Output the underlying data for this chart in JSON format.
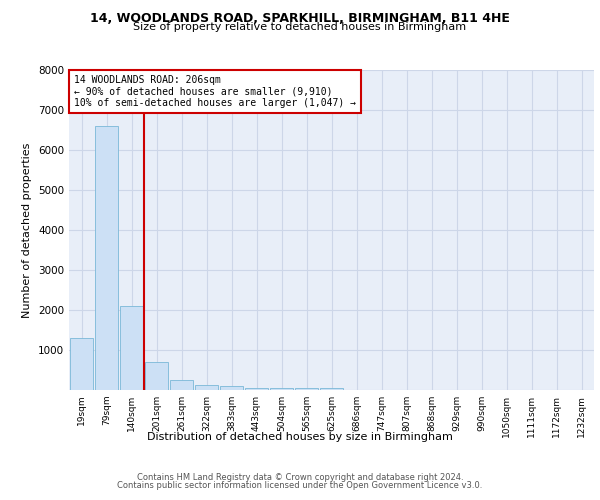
{
  "title1": "14, WOODLANDS ROAD, SPARKHILL, BIRMINGHAM, B11 4HE",
  "title2": "Size of property relative to detached houses in Birmingham",
  "xlabel": "Distribution of detached houses by size in Birmingham",
  "ylabel": "Number of detached properties",
  "bar_color": "#cce0f5",
  "bar_edge_color": "#7ab8d8",
  "categories": [
    "19sqm",
    "79sqm",
    "140sqm",
    "201sqm",
    "261sqm",
    "322sqm",
    "383sqm",
    "443sqm",
    "504sqm",
    "565sqm",
    "625sqm",
    "686sqm",
    "747sqm",
    "807sqm",
    "868sqm",
    "929sqm",
    "990sqm",
    "1050sqm",
    "1111sqm",
    "1172sqm",
    "1232sqm"
  ],
  "values": [
    1300,
    6600,
    2100,
    700,
    250,
    130,
    90,
    60,
    60,
    60,
    60,
    0,
    0,
    0,
    0,
    0,
    0,
    0,
    0,
    0,
    0
  ],
  "vline_index": 2.5,
  "vline_color": "#cc0000",
  "annotation_line1": "14 WOODLANDS ROAD: 206sqm",
  "annotation_line2": "← 90% of detached houses are smaller (9,910)",
  "annotation_line3": "10% of semi-detached houses are larger (1,047) →",
  "annotation_box_color": "#cc0000",
  "ylim": [
    0,
    8000
  ],
  "yticks": [
    0,
    1000,
    2000,
    3000,
    4000,
    5000,
    6000,
    7000,
    8000
  ],
  "grid_color": "#cdd6e8",
  "background_color": "#e8eef8",
  "footer1": "Contains HM Land Registry data © Crown copyright and database right 2024.",
  "footer2": "Contains public sector information licensed under the Open Government Licence v3.0."
}
